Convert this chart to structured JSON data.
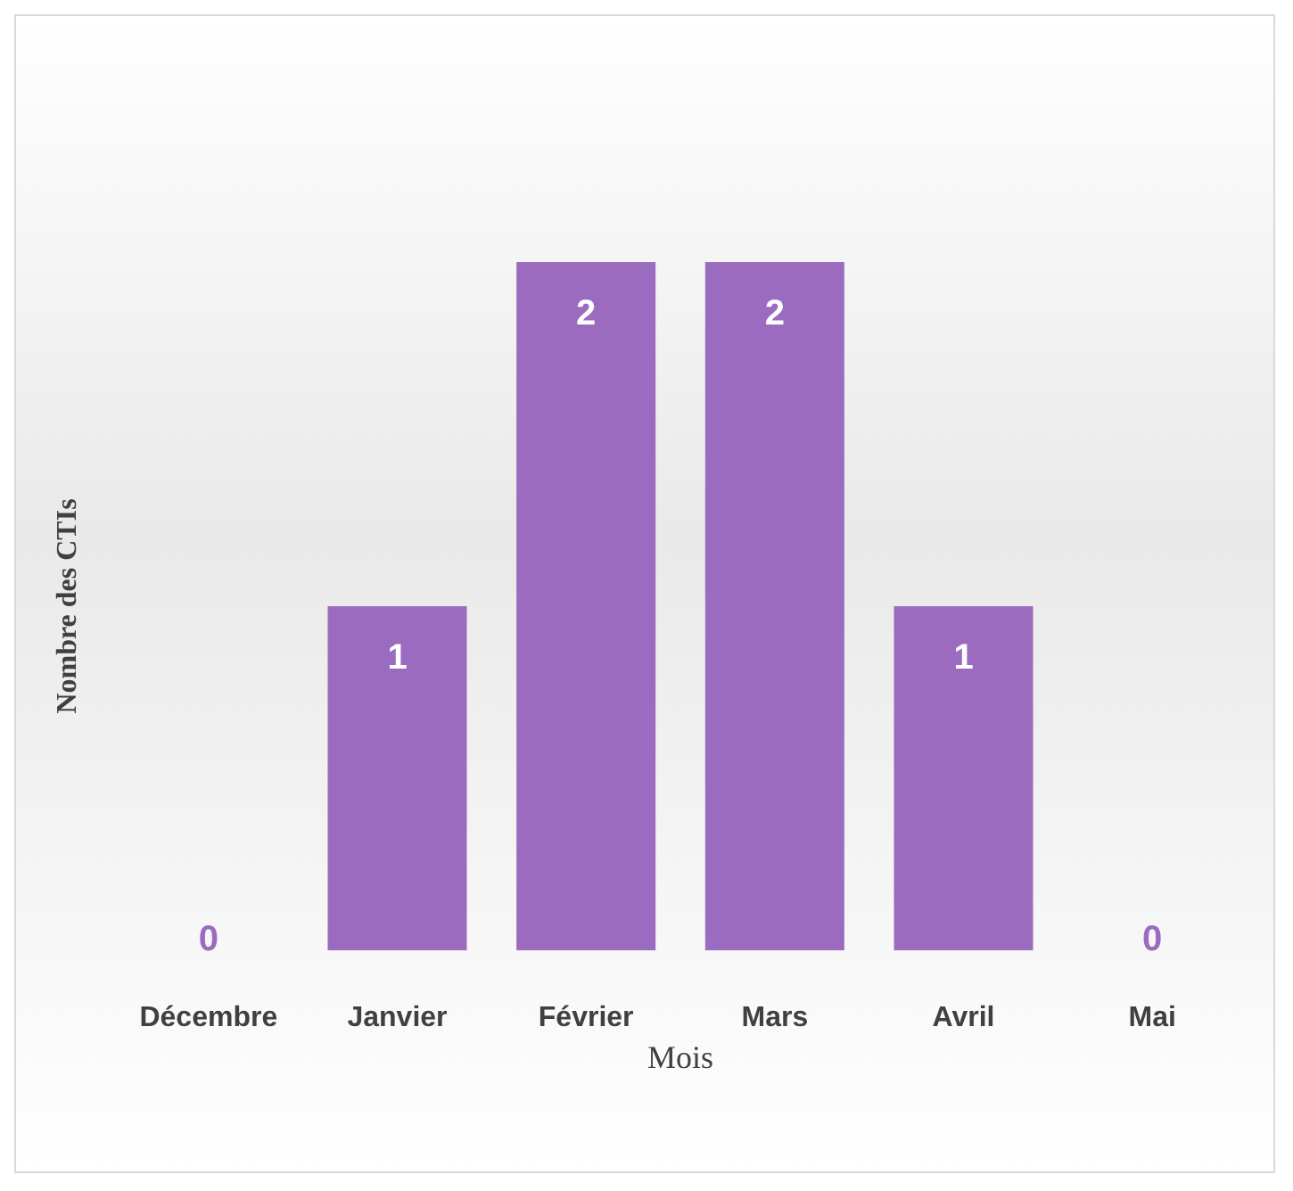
{
  "chart_data": {
    "type": "bar",
    "xlabel": "Mois",
    "ylabel": "Nombre des CTIs",
    "categories": [
      "Décembre",
      "Janvier",
      "Février",
      "Mars",
      "Avril",
      "Mai"
    ],
    "values": [
      0,
      1,
      2,
      2,
      1,
      0
    ],
    "color": "#9b6bbf",
    "relative": false,
    "data_labels": true,
    "grid": false
  }
}
